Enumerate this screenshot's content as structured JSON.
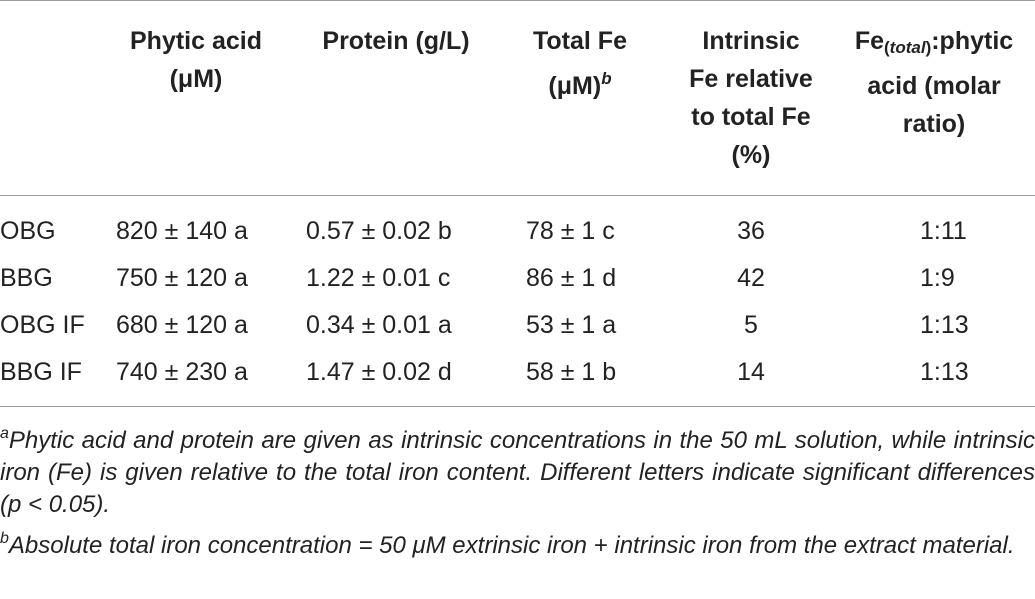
{
  "headers": {
    "phytic_acid_line1": "Phytic acid",
    "phytic_acid_line2": "(μM)",
    "protein": "Protein (g/L)",
    "total_fe_line1": "Total Fe",
    "total_fe_line2": "(μM)",
    "total_fe_sup": "b",
    "intrinsic_line1": "Intrinsic",
    "intrinsic_line2": "Fe relative",
    "intrinsic_line3": "to total Fe",
    "intrinsic_line4": "(%)",
    "ratio_fe": "Fe",
    "ratio_sub_open": "(",
    "ratio_sub_word": "total",
    "ratio_sub_close": ")",
    "ratio_line1_rest": ":phytic",
    "ratio_line2": "acid (molar",
    "ratio_line3": "ratio)"
  },
  "rows": [
    {
      "name": "OBG",
      "phytic": "820 ± 140 a",
      "protein": "0.57 ± 0.02 b",
      "total_fe": "78 ± 1 c",
      "intrinsic": "36",
      "ratio": "1:11"
    },
    {
      "name": "BBG",
      "phytic": "750 ± 120 a",
      "protein": "1.22 ± 0.01 c",
      "total_fe": "86 ± 1 d",
      "intrinsic": "42",
      "ratio": "1:9"
    },
    {
      "name": "OBG IF",
      "phytic": "680 ± 120 a",
      "protein": "0.34 ± 0.01 a",
      "total_fe": "53 ± 1 a",
      "intrinsic": "5",
      "ratio": "1:13"
    },
    {
      "name": "BBG IF",
      "phytic": "740 ± 230 a",
      "protein": "1.47 ± 0.02 d",
      "total_fe": "58 ± 1 b",
      "intrinsic": "14",
      "ratio": "1:13"
    }
  ],
  "footnotes": {
    "a_mark": "a",
    "a_text": "Phytic acid and protein are given as intrinsic concentrations in the 50 mL solution, while intrinsic iron (Fe) is given relative to the total iron content. Different letters indicate significant differences (p < 0.05).",
    "b_mark": "b",
    "b_text": "Absolute total iron concentration = 50 μM extrinsic iron + intrinsic iron from the extract material."
  }
}
